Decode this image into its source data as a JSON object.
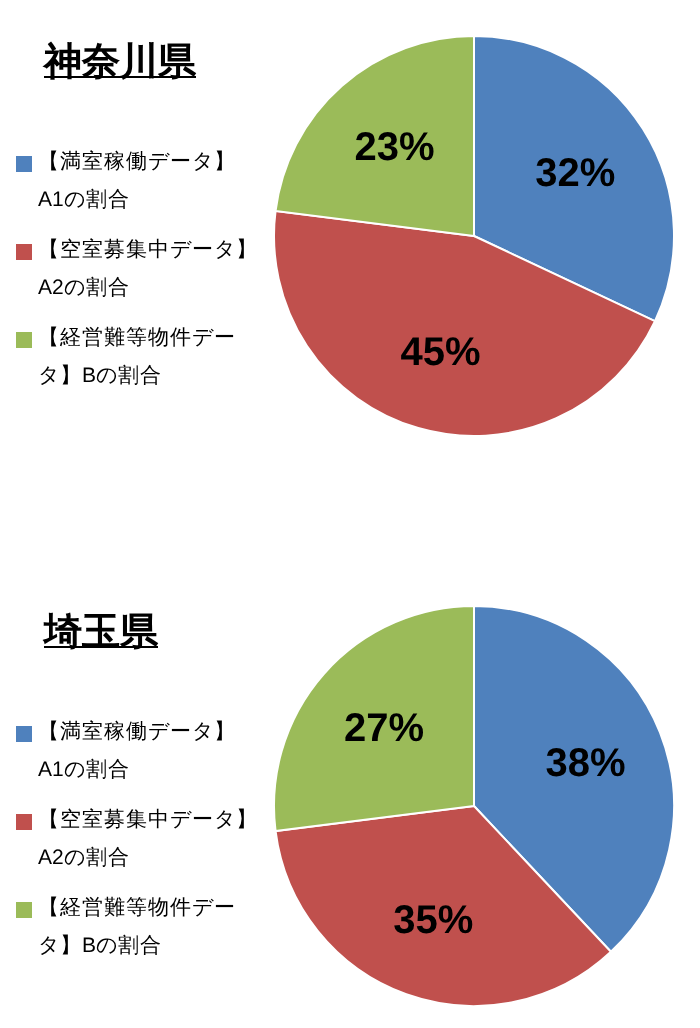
{
  "chart_data": [
    {
      "type": "pie",
      "title": "神奈川県",
      "categories": [
        "【満室稼働データ】A1の割合",
        "【空室募集中データ】A2の割合",
        "【経営難等物件データ】Bの割合"
      ],
      "values": [
        32,
        45,
        23
      ],
      "value_labels": [
        "32%",
        "45%",
        "23%"
      ],
      "colors": [
        "#4f81bd",
        "#c0504d",
        "#9bbb59"
      ],
      "legend": "left"
    },
    {
      "type": "pie",
      "title": "埼玉県",
      "categories": [
        "【満室稼働データ】A1の割合",
        "【空室募集中データ】A2の割合",
        "【経営難等物件データ】Bの割合"
      ],
      "values": [
        38,
        35,
        27
      ],
      "value_labels": [
        "38%",
        "35%",
        "27%"
      ],
      "colors": [
        "#4f81bd",
        "#c0504d",
        "#9bbb59"
      ],
      "legend": "left"
    }
  ]
}
